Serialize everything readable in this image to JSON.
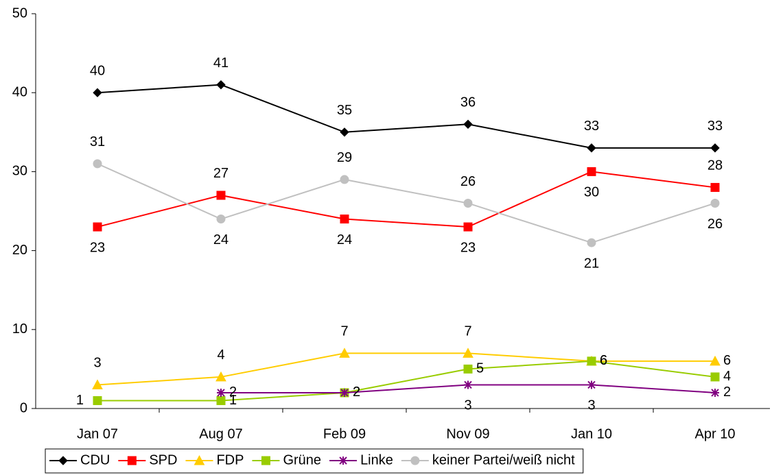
{
  "chart_data": {
    "type": "line",
    "categories": [
      "Jan 07",
      "Aug 07",
      "Feb 09",
      "Nov 09",
      "Jan 10",
      "Apr 10"
    ],
    "ylim": [
      0,
      50
    ],
    "yticks": [
      0,
      10,
      20,
      30,
      40,
      50
    ],
    "series": [
      {
        "name": "CDU",
        "color": "#000000",
        "marker": "diamond",
        "values": [
          40,
          41,
          35,
          36,
          33,
          33
        ]
      },
      {
        "name": "SPD",
        "color": "#ff0000",
        "marker": "square",
        "values": [
          23,
          27,
          24,
          23,
          30,
          28
        ]
      },
      {
        "name": "FDP",
        "color": "#ffcc00",
        "marker": "triangle",
        "values": [
          3,
          4,
          7,
          7,
          6,
          6
        ]
      },
      {
        "name": "Grüne",
        "color": "#99cc00",
        "marker": "square",
        "values": [
          1,
          1,
          2,
          5,
          6,
          4
        ]
      },
      {
        "name": "Linke",
        "color": "#800080",
        "marker": "star",
        "values": [
          null,
          2,
          2,
          3,
          3,
          2
        ]
      },
      {
        "name": "keiner Partei/weiß nicht",
        "color": "#c0c0c0",
        "marker": "circle",
        "values": [
          31,
          24,
          29,
          26,
          21,
          26
        ]
      }
    ],
    "legend": "bottom"
  }
}
